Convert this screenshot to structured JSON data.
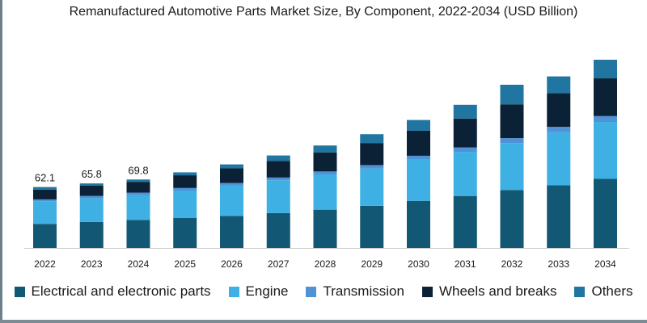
{
  "colors": {
    "electrical": "#125773",
    "engine": "#3eb0e3",
    "transmission": "#4f93d6",
    "wheels": "#0b2236",
    "others": "#2075a1"
  },
  "chart_data": {
    "type": "bar",
    "stacked": true,
    "title": "Remanufactured Automotive Parts Market Size, By Component, 2022-2034 (USD Billion)",
    "xlabel": "",
    "ylabel": "",
    "ylim": [
      0,
      220
    ],
    "grid": false,
    "legend": "bottom",
    "categories": [
      "2022",
      "2023",
      "2024",
      "2025",
      "2026",
      "2027",
      "2028",
      "2029",
      "2030",
      "2031",
      "2032",
      "2033",
      "2034"
    ],
    "series": [
      {
        "name": "Electrical and electronic parts",
        "color_key": "electrical",
        "values": [
          24.5,
          26.5,
          28.4,
          30.5,
          32.5,
          35.5,
          39,
          43,
          48,
          53,
          59,
          64,
          70.5
        ]
      },
      {
        "name": "Engine",
        "color_key": "engine",
        "values": [
          23,
          24,
          25.5,
          28,
          31,
          33.5,
          36,
          38,
          42,
          45,
          48,
          54,
          58
        ]
      },
      {
        "name": "Transmission",
        "color_key": "transmission",
        "values": [
          2,
          2.5,
          2.5,
          2.6,
          2.7,
          2.8,
          3,
          3.5,
          4,
          4.5,
          5,
          5.5,
          6
        ]
      },
      {
        "name": "Wheels and breaks",
        "color_key": "wheels",
        "values": [
          10,
          10.5,
          11,
          13,
          15,
          17,
          19.5,
          22.5,
          25.5,
          29.5,
          34.5,
          34.5,
          38.5
        ]
      },
      {
        "name": "Others",
        "color_key": "others",
        "values": [
          2.6,
          2.3,
          2.4,
          3,
          4,
          5.5,
          7,
          9,
          11,
          14,
          20,
          17,
          19
        ]
      }
    ],
    "data_labels": [
      {
        "category": "2022",
        "text": "62.1"
      },
      {
        "category": "2023",
        "text": "65.8"
      },
      {
        "category": "2024",
        "text": "69.8"
      }
    ]
  }
}
